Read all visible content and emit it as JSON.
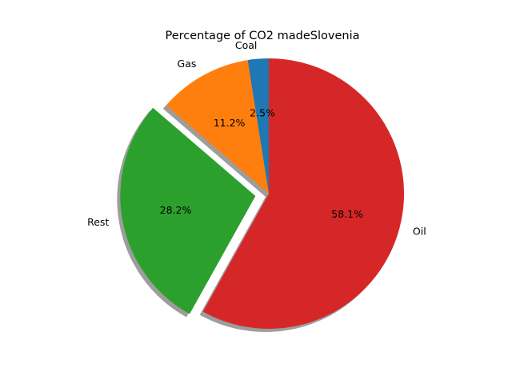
{
  "chart_data": {
    "type": "pie",
    "title": "Percentage of CO2 madeSlovenia",
    "slices": [
      {
        "label": "Coal",
        "value": 2.5,
        "pct_label": "2.5%",
        "color": "#1f77b4",
        "exploded": false
      },
      {
        "label": "Gas",
        "value": 11.2,
        "pct_label": "11.2%",
        "color": "#ff7f0e",
        "exploded": false
      },
      {
        "label": "Rest",
        "value": 28.2,
        "pct_label": "28.2%",
        "color": "#2ca02c",
        "exploded": true
      },
      {
        "label": "Oil",
        "value": 58.1,
        "pct_label": "58.1%",
        "color": "#d62728",
        "exploded": false
      }
    ],
    "start_angle_deg": 90,
    "direction": "counterclockwise",
    "shadow": true,
    "legend": "none"
  }
}
